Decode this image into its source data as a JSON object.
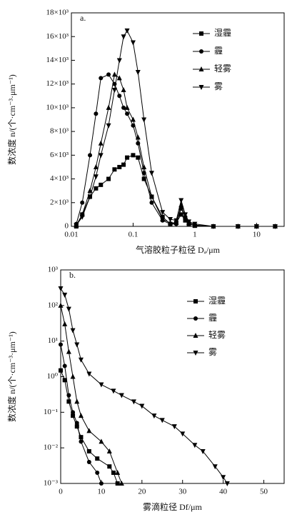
{
  "chart_data": [
    {
      "type": "line",
      "panel": "a.",
      "xlabel": "气溶胶粒子粒径 Dₐ/μm",
      "ylabel": "数浓度 n/(个·cm⁻³·μm⁻¹)",
      "xscale": "log",
      "yscale": "linear",
      "xlim": [
        0.01,
        28
      ],
      "xticks": [
        0.01,
        0.1,
        1,
        10
      ],
      "ylim": [
        0,
        18000
      ],
      "yticks": [
        0,
        {
          "value": 2000,
          "label": "2×10³"
        },
        {
          "value": 4000,
          "label": "4×10³"
        },
        {
          "value": 6000,
          "label": "6×10³"
        },
        {
          "value": 8000,
          "label": "8×10³"
        },
        {
          "value": 10000,
          "label": "10×10³"
        },
        {
          "value": 12000,
          "label": "12×10³"
        },
        {
          "value": 14000,
          "label": "14×10³"
        },
        {
          "value": 16000,
          "label": "16×10³"
        },
        {
          "value": 18000,
          "label": "18×10³"
        }
      ],
      "x": [
        0.012,
        0.015,
        0.02,
        0.025,
        0.03,
        0.04,
        0.05,
        0.06,
        0.07,
        0.08,
        0.1,
        0.12,
        0.15,
        0.2,
        0.3,
        0.4,
        0.5,
        0.6,
        0.7,
        0.8,
        1,
        2,
        5,
        10,
        20
      ],
      "series": [
        {
          "name": "湿霾",
          "color": "#000000",
          "marker": "square",
          "values": [
            0,
            1000,
            2500,
            3200,
            3500,
            4000,
            4800,
            5000,
            5200,
            5800,
            6000,
            5800,
            4000,
            2500,
            800,
            200,
            300,
            1000,
            500,
            200,
            50,
            0,
            0,
            0,
            0
          ]
        },
        {
          "name": "霾",
          "color": "#000000",
          "marker": "circle",
          "values": [
            200,
            2000,
            6000,
            9500,
            12500,
            12800,
            12000,
            11000,
            10000,
            9500,
            8500,
            7000,
            4500,
            2000,
            500,
            200,
            200,
            1500,
            800,
            300,
            100,
            0,
            0,
            0,
            0
          ]
        },
        {
          "name": "轻雾",
          "color": "#000000",
          "marker": "triangle-up",
          "values": [
            100,
            1000,
            3000,
            5000,
            7000,
            10000,
            12800,
            12500,
            11500,
            10000,
            9000,
            7500,
            5000,
            2500,
            600,
            300,
            300,
            1800,
            800,
            300,
            100,
            0,
            0,
            0,
            0
          ]
        },
        {
          "name": "雾",
          "color": "#000000",
          "marker": "triangle-down",
          "values": [
            100,
            800,
            2500,
            4200,
            6000,
            8500,
            11500,
            14000,
            16000,
            16500,
            15500,
            13000,
            9000,
            4500,
            1200,
            600,
            500,
            2200,
            1000,
            400,
            200,
            0,
            0,
            0,
            0
          ]
        }
      ]
    },
    {
      "type": "line",
      "panel": "b.",
      "xlabel": "雾滴粒径 Df/μm",
      "ylabel": "数浓度 n/(个·cm⁻³·μm⁻¹)",
      "xscale": "linear",
      "yscale": "log",
      "xlim": [
        0,
        55
      ],
      "xticks": [
        0,
        10,
        20,
        30,
        40,
        50
      ],
      "ylim": [
        0.001,
        1000
      ],
      "yticks": [
        {
          "value": 0.001,
          "label": "10⁻³"
        },
        {
          "value": 0.01,
          "label": "10⁻²"
        },
        {
          "value": 0.1,
          "label": "10⁻¹"
        },
        {
          "value": 1,
          "label": "10⁰"
        },
        {
          "value": 10,
          "label": "10¹"
        },
        {
          "value": 100,
          "label": "10²"
        },
        {
          "value": 1000,
          "label": "10³"
        }
      ],
      "series": [
        {
          "name": "湿霾",
          "color": "#000000",
          "marker": "square",
          "x": [
            0,
            1,
            2,
            3,
            4,
            5,
            7,
            9,
            12,
            13,
            14
          ],
          "values": [
            1.5,
            0.8,
            0.2,
            0.08,
            0.04,
            0.02,
            0.008,
            0.005,
            0.003,
            0.002,
            0.001
          ]
        },
        {
          "name": "霾",
          "color": "#000000",
          "marker": "circle",
          "x": [
            0,
            1,
            2,
            3,
            4,
            5,
            7,
            9,
            10
          ],
          "values": [
            8,
            2,
            0.3,
            0.1,
            0.05,
            0.015,
            0.004,
            0.002,
            0.001
          ]
        },
        {
          "name": "轻雾",
          "color": "#000000",
          "marker": "triangle-up",
          "x": [
            0,
            1,
            2,
            3,
            4,
            5,
            7,
            10,
            12,
            14,
            15
          ],
          "values": [
            100,
            30,
            5,
            1,
            0.2,
            0.08,
            0.03,
            0.015,
            0.008,
            0.002,
            0.001
          ]
        },
        {
          "name": "雾",
          "color": "#000000",
          "marker": "triangle-down",
          "x": [
            0,
            1,
            2,
            3,
            4,
            5,
            7,
            10,
            13,
            15,
            18,
            20,
            23,
            25,
            28,
            30,
            33,
            35,
            38,
            40,
            41
          ],
          "values": [
            300,
            200,
            80,
            20,
            8,
            3,
            1.2,
            0.6,
            0.4,
            0.3,
            0.2,
            0.15,
            0.08,
            0.06,
            0.04,
            0.025,
            0.012,
            0.008,
            0.003,
            0.0015,
            0.001
          ]
        }
      ]
    }
  ]
}
